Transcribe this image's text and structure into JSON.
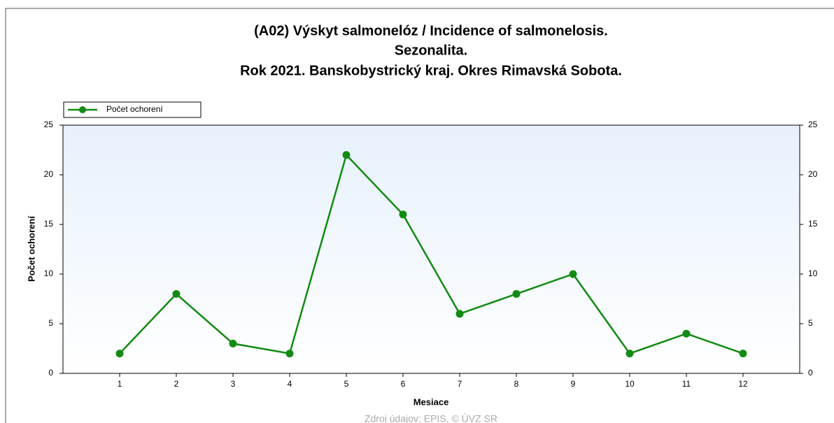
{
  "chart_data": {
    "type": "line",
    "title": [
      "(A02) Výskyt salmonelóz / Incidence of salmonelosis.",
      "Sezonalita.",
      "Rok 2021. Banskobystrický kraj. Okres Rimavská Sobota."
    ],
    "x": [
      1,
      2,
      3,
      4,
      5,
      6,
      7,
      8,
      9,
      10,
      11,
      12
    ],
    "series": [
      {
        "name": "Počet ochorení",
        "color": "#138a13",
        "values": [
          2,
          8,
          3,
          2,
          22,
          16,
          6,
          8,
          10,
          2,
          4,
          2
        ]
      }
    ],
    "xlim": [
      0,
      13
    ],
    "xticks": [
      1,
      2,
      3,
      4,
      5,
      6,
      7,
      8,
      9,
      10,
      11,
      12
    ],
    "ylim": [
      0,
      25
    ],
    "yticks": [
      0,
      5,
      10,
      15,
      20,
      25
    ],
    "y2lim": [
      0,
      25
    ],
    "y2ticks": [
      0,
      5,
      10,
      15,
      20,
      25
    ],
    "xlabel": "Mesiace",
    "ylabel": "Počet ochorení",
    "source": "Zdroj údajov: EPIS, © ÚVZ SR",
    "legend": "top-left"
  }
}
